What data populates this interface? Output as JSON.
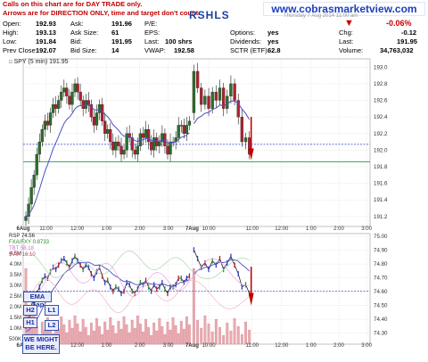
{
  "notice": {
    "line1": "Calls on this chart are for DAY TRADE only.",
    "line2": "Arrows are for DIRECTION ONLY, time and target don't count."
  },
  "ticker": "RSHLS",
  "site_url": "www.cobrasmarketview.com",
  "header_date": "Thursday 7 Aug 2014  11:00 am",
  "quote": {
    "open_label": "Open:",
    "open": "192.93",
    "high_label": "High:",
    "high": "193.13",
    "low_label": "Low:",
    "low": "191.84",
    "prev_close_label": "Prev Close:",
    "prev_close": "192.07",
    "ask_label": "Ask:",
    "ask": "191.96",
    "ask_size_label": "Ask Size:",
    "ask_size": "61",
    "bid_label": "Bid:",
    "bid": "191.95",
    "bid_size_label": "Bid Size:",
    "bid_size": "14",
    "pe_label": "P/E:",
    "pe": "",
    "eps_label": "EPS:",
    "eps": "",
    "last_label": "Last:",
    "last": "100 shrs",
    "vwap_label": "VWAP:",
    "vwap": "192.58",
    "options_label": "Options:",
    "options": "yes",
    "dividends_label": "Dividends:",
    "dividends": "yes",
    "sctr_label": "SCTR (ETF):",
    "sctr": "62.8",
    "change_pct": "-0.06%",
    "chg_label": "Chg:",
    "chg": "-0.12",
    "last2_label": "Last:",
    "last2": "191.95",
    "volume_label": "Volume:",
    "volume": "34,763,032"
  },
  "price_panel_label": "SPY (5 min) 191.95",
  "lower_panel_labels": {
    "rsp": "RSP 74.56",
    "fxa": "FXA/FXY 0.8733",
    "tbt": "TBT 58.18",
    "vix": "$VIX 16.10"
  },
  "annotation_boxes": {
    "ema_gap": "EMA Gap",
    "h2": "H2",
    "l1": "L1",
    "h1": "H1",
    "l2": "L2",
    "note": "WE MIGHT BE HERE."
  },
  "colors": {
    "up_candle": "#2a6e2a",
    "down_candle": "#b02030",
    "ema_line": "#4b4fc8",
    "green_support": "#1aa34a",
    "blue_dashed": "#3040c0",
    "red_arrow": "#c00000",
    "grid": "#d8d8d8"
  },
  "chart_data": [
    {
      "type": "candlestick",
      "title": "SPY (5 min) 191.95",
      "x_ticks": [
        "6Aug",
        "11:00",
        "12:00",
        "1:00",
        "2:00",
        "3:00",
        "7Aug",
        "10:00",
        "11:00",
        "12:00",
        "1:00",
        "2:00",
        "3:00"
      ],
      "y_ticks": [
        191.2,
        191.4,
        191.6,
        191.8,
        192.0,
        192.2,
        192.4,
        192.6,
        192.8,
        193.0
      ],
      "ylim": [
        191.08,
        193.1
      ],
      "grid": true,
      "reference_lines": [
        {
          "label": "support",
          "value": 191.86,
          "color": "green",
          "style": "solid"
        },
        {
          "label": "prev close",
          "value": 192.07,
          "color": "blue",
          "style": "dashed"
        }
      ],
      "close_series": [
        191.2,
        191.35,
        191.55,
        191.7,
        191.95,
        192.1,
        192.25,
        192.35,
        192.3,
        192.45,
        192.55,
        192.5,
        192.6,
        192.7,
        192.75,
        192.65,
        192.55,
        192.7,
        192.8,
        192.7,
        192.6,
        192.5,
        192.6,
        192.55,
        192.4,
        192.3,
        192.45,
        192.55,
        192.35,
        192.2,
        192.25,
        192.1,
        192.0,
        192.1,
        192.05,
        191.95,
        192.0,
        192.2,
        192.15,
        192.0,
        191.95,
        192.05,
        192.2,
        192.15,
        192.25,
        192.1,
        192.0,
        192.15,
        192.05,
        192.1,
        192.2,
        192.05,
        191.95,
        192.1,
        192.1,
        192.15,
        192.3,
        192.3,
        192.2,
        192.3,
        192.35,
        192.95,
        192.75,
        192.55,
        192.65,
        192.5,
        192.7,
        192.6,
        192.75,
        192.5,
        192.65,
        192.8,
        192.6,
        192.4,
        192.1,
        192.15,
        191.95
      ]
    },
    {
      "type": "line",
      "title": "RSP 74.56",
      "series_names": [
        "RSP 74.56",
        "FXA/FXY 0.8733",
        "TBT 58.18",
        "$VIX 16.10"
      ],
      "y_ticks_right": [
        74.3,
        74.4,
        74.5,
        74.6,
        74.7,
        74.8,
        74.9,
        75.0
      ],
      "volume_ticks_left": [
        "500K",
        "1.0M",
        "1.5M",
        "2.0M",
        "2.5M",
        "3.0M",
        "3.5M",
        "4.0M",
        "4.5M"
      ],
      "x_ticks": [
        "6Aug",
        "11:00",
        "12:00",
        "1:00",
        "2:00",
        "3:00",
        "7Aug",
        "10:00",
        "11:00",
        "12:00",
        "1:00",
        "2:00",
        "3:00"
      ],
      "ylim": [
        74.22,
        75.02
      ],
      "reference_lines": [
        {
          "label": "dashed",
          "value": 74.605,
          "color": "blue",
          "style": "dashed"
        }
      ]
    }
  ]
}
